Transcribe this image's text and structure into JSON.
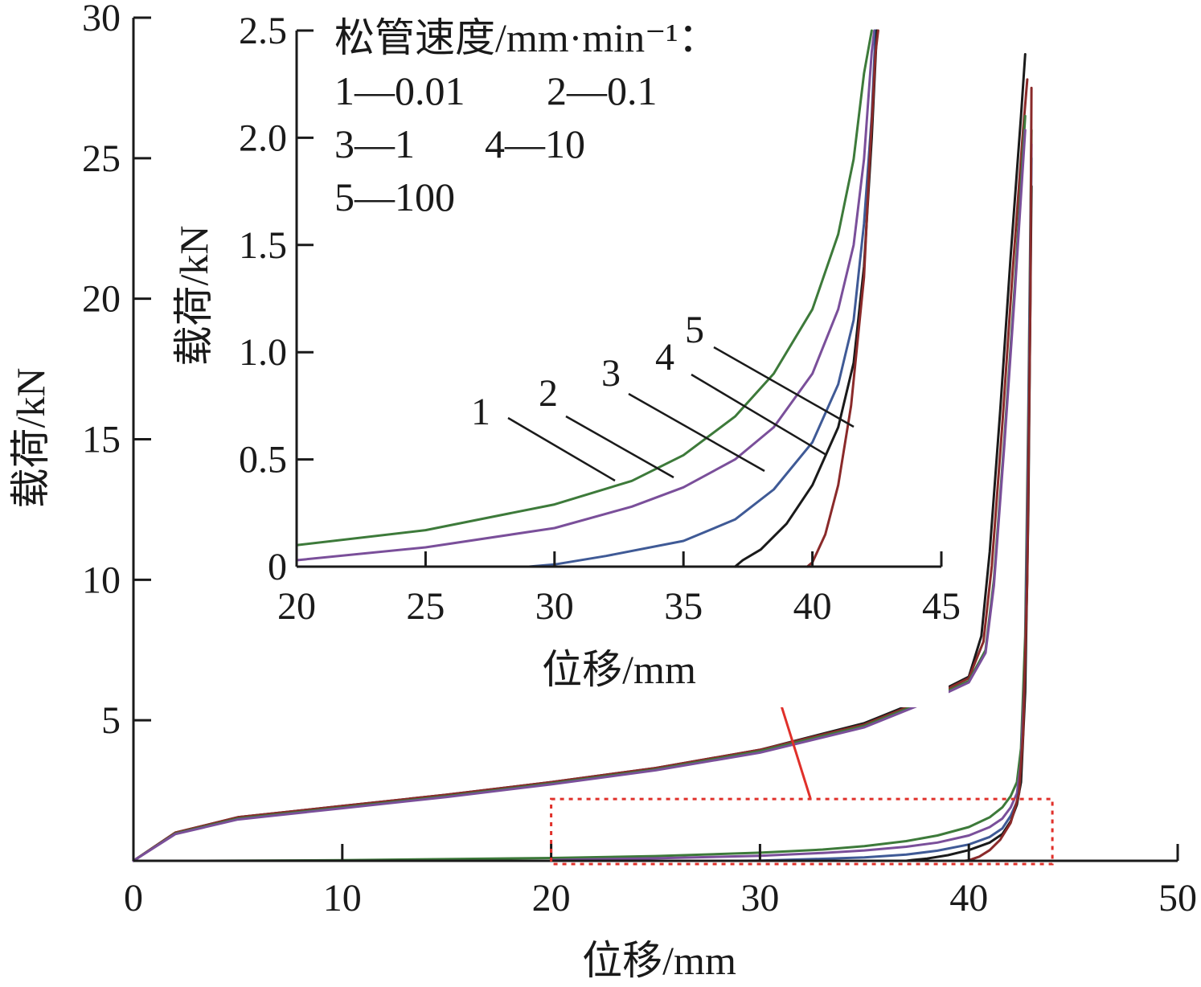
{
  "colors": {
    "1": "#3d7a3a",
    "2": "#7a4f9a",
    "3": "#3f5a96",
    "4": "#1a1a1a",
    "5": "#8a2a2a",
    "zoom_box": "#e0302a",
    "axis": "#1a1a1a"
  },
  "chart_data": [
    {
      "type": "line",
      "title": "",
      "xlabel": "位移/mm",
      "ylabel": "载荷/kN",
      "xlim": [
        0,
        50
      ],
      "ylim": [
        0,
        30
      ],
      "xticks": [
        0,
        10,
        20,
        30,
        40,
        50
      ],
      "yticks": [
        5,
        10,
        15,
        20,
        25,
        30
      ],
      "xtick_labels": [
        "0",
        "10",
        "20",
        "30",
        "40",
        "50"
      ],
      "ytick_labels": [
        "5",
        "10",
        "15",
        "20",
        "25",
        "30"
      ],
      "zoom_region": {
        "x": [
          20,
          44
        ],
        "y": [
          0,
          2.2
        ]
      },
      "groups": [
        {
          "description": "upper curve family",
          "series": [
            {
              "id": "4",
              "x": [
                0,
                2,
                5,
                10,
                15,
                20,
                25,
                30,
                35,
                38,
                40,
                40.6,
                41,
                41.5,
                42,
                42.5,
                42.7
              ],
              "y": [
                0,
                1,
                1.55,
                1.95,
                2.35,
                2.8,
                3.3,
                3.95,
                4.9,
                5.8,
                6.55,
                8,
                11,
                16,
                21.5,
                26.5,
                28.7
              ]
            },
            {
              "id": "5",
              "x": [
                0,
                2,
                5,
                10,
                15,
                20,
                25,
                30,
                35,
                38,
                40,
                40.7,
                41.1,
                41.6,
                42.1,
                42.6,
                42.8
              ],
              "y": [
                0,
                1,
                1.55,
                1.95,
                2.35,
                2.8,
                3.3,
                3.95,
                4.85,
                5.75,
                6.5,
                7.8,
                10.5,
                15.5,
                21,
                26,
                27.8
              ]
            },
            {
              "id": "1",
              "x": [
                0,
                2,
                5,
                10,
                15,
                20,
                25,
                30,
                35,
                38,
                40,
                40.8,
                41.2,
                41.7,
                42.2,
                42.7
              ],
              "y": [
                0,
                0.97,
                1.5,
                1.9,
                2.3,
                2.75,
                3.25,
                3.9,
                4.8,
                5.7,
                6.4,
                7.5,
                10,
                15,
                20.5,
                26.5
              ]
            },
            {
              "id": "2",
              "x": [
                0,
                2,
                5,
                10,
                15,
                20,
                25,
                30,
                35,
                38,
                40,
                40.8,
                41.2,
                41.7,
                42.2,
                42.7
              ],
              "y": [
                0,
                0.95,
                1.47,
                1.87,
                2.27,
                2.72,
                3.22,
                3.85,
                4.75,
                5.65,
                6.35,
                7.4,
                9.8,
                14.8,
                20.2,
                26
              ]
            }
          ]
        },
        {
          "description": "lower curve family",
          "series": [
            {
              "id": "1",
              "x": [
                2.8,
                10,
                20,
                25,
                30,
                33,
                35,
                37,
                38.5,
                40,
                41,
                41.6,
                42,
                42.3,
                42.5,
                42.7,
                42.85,
                43
              ],
              "y": [
                0,
                0.02,
                0.1,
                0.17,
                0.29,
                0.4,
                0.52,
                0.7,
                0.9,
                1.2,
                1.55,
                1.9,
                2.3,
                2.8,
                4,
                8,
                16,
                26
              ]
            },
            {
              "id": "2",
              "x": [
                20,
                25,
                30,
                33,
                35,
                37,
                38.5,
                40,
                41,
                41.6,
                42,
                42.3,
                42.5,
                42.7,
                42.85,
                43
              ],
              "y": [
                0.03,
                0.09,
                0.18,
                0.28,
                0.37,
                0.5,
                0.65,
                0.9,
                1.2,
                1.5,
                1.9,
                2.4,
                3.5,
                7,
                15,
                25.5
              ]
            },
            {
              "id": "3",
              "x": [
                29,
                30,
                32,
                35,
                37,
                38.5,
                40,
                41,
                41.6,
                42,
                42.3,
                42.5,
                42.7,
                42.85,
                43
              ],
              "y": [
                0,
                0.01,
                0.05,
                0.12,
                0.22,
                0.36,
                0.58,
                0.85,
                1.15,
                1.6,
                2.1,
                3,
                6.5,
                14,
                25
              ]
            },
            {
              "id": "4",
              "x": [
                37,
                37.3,
                38,
                39,
                40,
                41,
                41.6,
                42,
                42.3,
                42.5,
                42.7,
                42.85,
                43
              ],
              "y": [
                0,
                0.03,
                0.08,
                0.2,
                0.38,
                0.65,
                0.95,
                1.4,
                2,
                2.8,
                6,
                12.5,
                24
              ]
            },
            {
              "id": "5",
              "x": [
                39.8,
                40,
                40.5,
                41,
                41.5,
                42,
                42.2,
                42.4,
                42.6,
                42.8,
                42.95,
                43
              ],
              "y": [
                0,
                0.02,
                0.15,
                0.38,
                0.75,
                1.35,
                1.85,
                2.4,
                4.5,
                10,
                20,
                27.5
              ]
            }
          ]
        }
      ]
    },
    {
      "type": "line",
      "title": "",
      "xlabel": "位移/mm",
      "ylabel": "载荷/kN",
      "xlim": [
        20,
        45
      ],
      "ylim": [
        0,
        2.5
      ],
      "xticks": [
        20,
        25,
        30,
        35,
        40,
        45
      ],
      "yticks": [
        0,
        0.5,
        1.0,
        1.5,
        2.0,
        2.5
      ],
      "xtick_labels": [
        "20",
        "25",
        "30",
        "35",
        "40",
        "45"
      ],
      "ytick_labels": [
        "0",
        "0.5",
        "1.0",
        "1.5",
        "2.0",
        "2.5"
      ],
      "legend": {
        "title": "松管速度/mm·min⁻¹：",
        "entries": [
          "1—0.01",
          "2—0.1",
          "3—1",
          "4—10",
          "5—100"
        ],
        "placement": "top-left"
      },
      "series": [
        {
          "id": "1",
          "x": [
            20,
            25,
            30,
            33,
            35,
            37,
            38.5,
            40,
            41,
            41.6,
            42,
            42.3
          ],
          "y": [
            0.1,
            0.17,
            0.29,
            0.4,
            0.52,
            0.7,
            0.9,
            1.2,
            1.55,
            1.9,
            2.3,
            2.5
          ]
        },
        {
          "id": "2",
          "x": [
            20,
            25,
            30,
            33,
            35,
            37,
            38.5,
            40,
            41,
            41.6,
            42,
            42.3,
            42.4
          ],
          "y": [
            0.03,
            0.09,
            0.18,
            0.28,
            0.37,
            0.5,
            0.65,
            0.9,
            1.2,
            1.5,
            1.9,
            2.4,
            2.5
          ]
        },
        {
          "id": "3",
          "x": [
            29,
            30,
            32,
            35,
            37,
            38.5,
            40,
            41,
            41.6,
            42,
            42.3,
            42.45
          ],
          "y": [
            0,
            0.01,
            0.05,
            0.12,
            0.22,
            0.36,
            0.58,
            0.85,
            1.15,
            1.6,
            2.1,
            2.5
          ]
        },
        {
          "id": "4",
          "x": [
            37,
            37.3,
            38,
            39,
            40,
            41,
            41.6,
            42,
            42.3,
            42.5
          ],
          "y": [
            0,
            0.03,
            0.08,
            0.2,
            0.38,
            0.65,
            0.95,
            1.4,
            2,
            2.5
          ]
        },
        {
          "id": "5",
          "x": [
            39.8,
            40,
            40.5,
            41,
            41.5,
            42,
            42.2,
            42.45,
            42.55
          ],
          "y": [
            0,
            0.02,
            0.15,
            0.38,
            0.75,
            1.35,
            1.85,
            2.4,
            2.5
          ]
        }
      ],
      "curve_labels": [
        {
          "text": "1",
          "series": "1",
          "x": 32.4,
          "y": 0.38
        },
        {
          "text": "2",
          "series": "2",
          "x": 34.7,
          "y": 0.42
        },
        {
          "text": "3",
          "series": "3",
          "x": 38.3,
          "y": 0.45
        },
        {
          "text": "4",
          "series": "4",
          "x": 40.9,
          "y": 0.52
        },
        {
          "text": "5",
          "series": "5",
          "x": 41.6,
          "y": 0.65
        }
      ]
    }
  ]
}
